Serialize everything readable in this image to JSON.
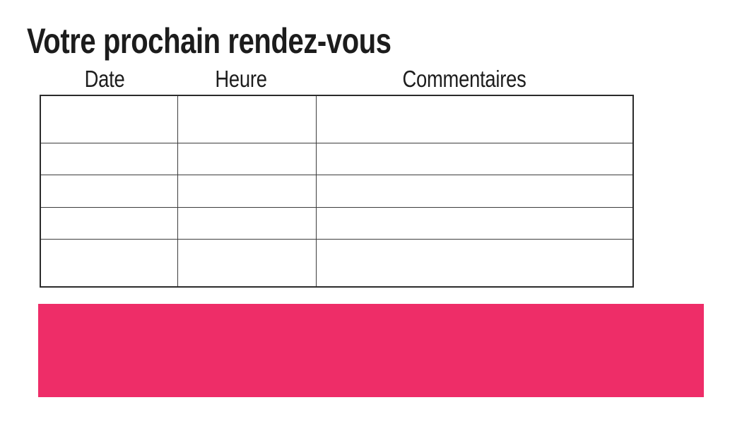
{
  "page": {
    "title": "Votre prochain rendez-vous"
  },
  "table": {
    "headers": [
      "Date",
      "Heure",
      "Commentaires"
    ],
    "rows": [
      [
        "",
        "",
        ""
      ],
      [
        "",
        "",
        ""
      ],
      [
        "",
        "",
        ""
      ],
      [
        "",
        "",
        ""
      ],
      [
        "",
        "",
        ""
      ]
    ]
  },
  "banner": {
    "color": "#EE2D68"
  }
}
